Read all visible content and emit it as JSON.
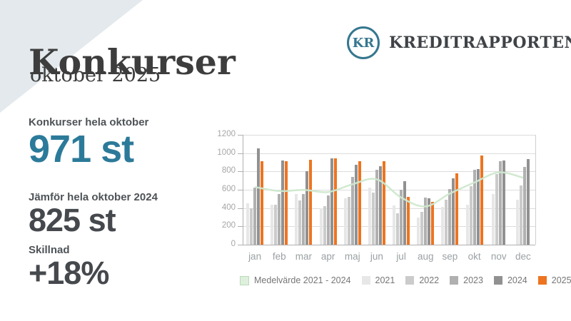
{
  "header": {
    "title": "Konkurser",
    "subtitle": "oktober 2025",
    "brand": {
      "logo_initials": "KR",
      "name": "KREDITRAPPORTEN",
      "color": "#35778f"
    }
  },
  "stats": [
    {
      "label": "Konkurser hela oktober",
      "value": "971 st",
      "color": "#2c7a99"
    },
    {
      "label": "Jämför hela oktober 2024",
      "value": "825 st",
      "color": "#45484c"
    },
    {
      "label": "Skillnad",
      "value": "+18%",
      "color": "#45484c"
    }
  ],
  "colors": {
    "accent_teal": "#2c7a99",
    "orange_2025": "#ed7420",
    "corner_decoration": "#e3e9ec",
    "average_line": "#cfe8cd"
  },
  "chart_data": {
    "type": "bar",
    "title": "",
    "xlabel": "",
    "ylabel": "",
    "ylim": [
      0,
      1200
    ],
    "ytick_step": 200,
    "grid": true,
    "legend_position": "bottom",
    "categories": [
      "jan",
      "feb",
      "mar",
      "apr",
      "maj",
      "jun",
      "jul",
      "aug",
      "sep",
      "okt",
      "nov",
      "dec"
    ],
    "series": [
      {
        "name": "2021",
        "color": "#e7e7e7",
        "values": [
          455,
          435,
          550,
          400,
          505,
          620,
          425,
          295,
          415,
          435,
          555,
          490
        ]
      },
      {
        "name": "2022",
        "color": "#cbcbcb",
        "values": [
          395,
          440,
          485,
          420,
          520,
          565,
          345,
          355,
          490,
          640,
          770,
          650
        ]
      },
      {
        "name": "2023",
        "color": "#b0b0b0",
        "values": [
          620,
          550,
          555,
          540,
          740,
          815,
          600,
          515,
          605,
          815,
          915,
          850
        ]
      },
      {
        "name": "2024",
        "color": "#919191",
        "values": [
          1050,
          920,
          800,
          940,
          875,
          855,
          690,
          505,
          725,
          825,
          920,
          935
        ]
      },
      {
        "name": "2025",
        "color": "#ed7420",
        "values": [
          910,
          915,
          930,
          945,
          910,
          915,
          520,
          465,
          780,
          971,
          null,
          null
        ]
      }
    ],
    "line_series": {
      "name": "Medelvärde 2021 - 2024",
      "color": "#cfe8cd",
      "values": [
        630,
        586,
        598,
        575,
        660,
        714,
        515,
        418,
        559,
        679,
        790,
        731
      ]
    }
  }
}
